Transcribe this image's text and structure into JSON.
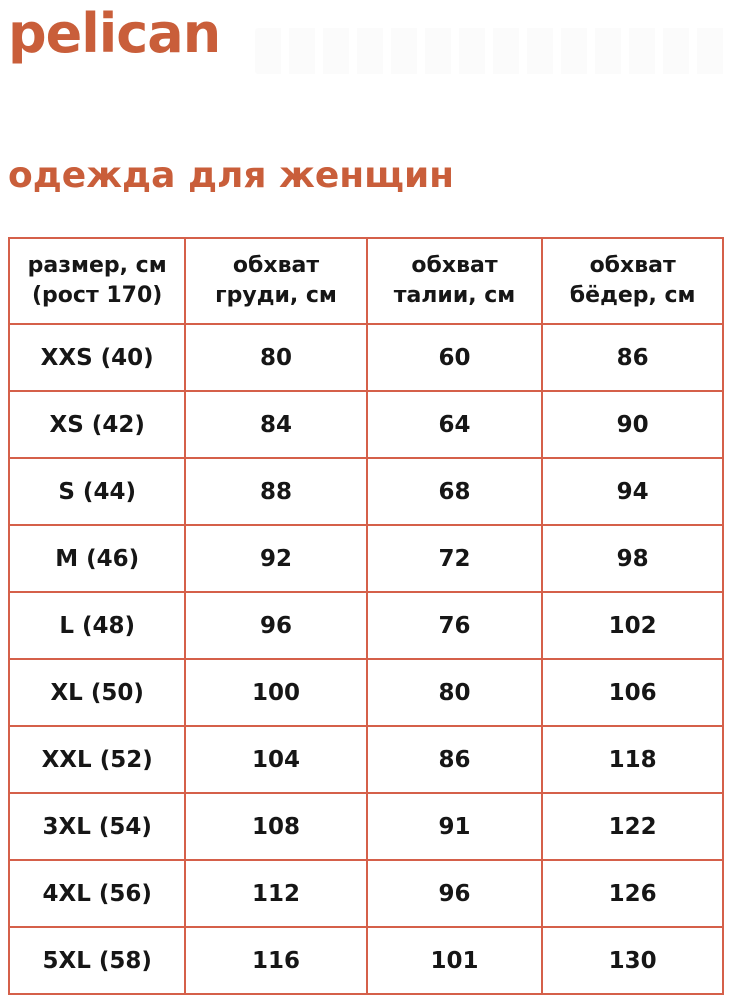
{
  "brand": {
    "logo": "pelican"
  },
  "heading": "одежда для женщин",
  "colors": {
    "accent_orange": "#c95e3a",
    "table_border": "#d5604a",
    "table_text": "#161616"
  },
  "table": {
    "headers": [
      {
        "line1": "размер, см",
        "line2": "(рост 170)"
      },
      {
        "line1": "обхват",
        "line2": "груди, см"
      },
      {
        "line1": "обхват",
        "line2": "талии, см"
      },
      {
        "line1": "обхват",
        "line2": "бёдер, см"
      }
    ],
    "rows": [
      {
        "size": "XXS (40)",
        "chest": "80",
        "waist": "60",
        "hips": "86"
      },
      {
        "size": "XS (42)",
        "chest": "84",
        "waist": "64",
        "hips": "90"
      },
      {
        "size": "S (44)",
        "chest": "88",
        "waist": "68",
        "hips": "94"
      },
      {
        "size": "M (46)",
        "chest": "92",
        "waist": "72",
        "hips": "98"
      },
      {
        "size": "L (48)",
        "chest": "96",
        "waist": "76",
        "hips": "102"
      },
      {
        "size": "XL (50)",
        "chest": "100",
        "waist": "80",
        "hips": "106"
      },
      {
        "size": "XXL (52)",
        "chest": "104",
        "waist": "86",
        "hips": "118"
      },
      {
        "size": "3XL (54)",
        "chest": "108",
        "waist": "91",
        "hips": "122"
      },
      {
        "size": "4XL (56)",
        "chest": "112",
        "waist": "96",
        "hips": "126"
      },
      {
        "size": "5XL (58)",
        "chest": "116",
        "waist": "101",
        "hips": "130"
      }
    ]
  }
}
